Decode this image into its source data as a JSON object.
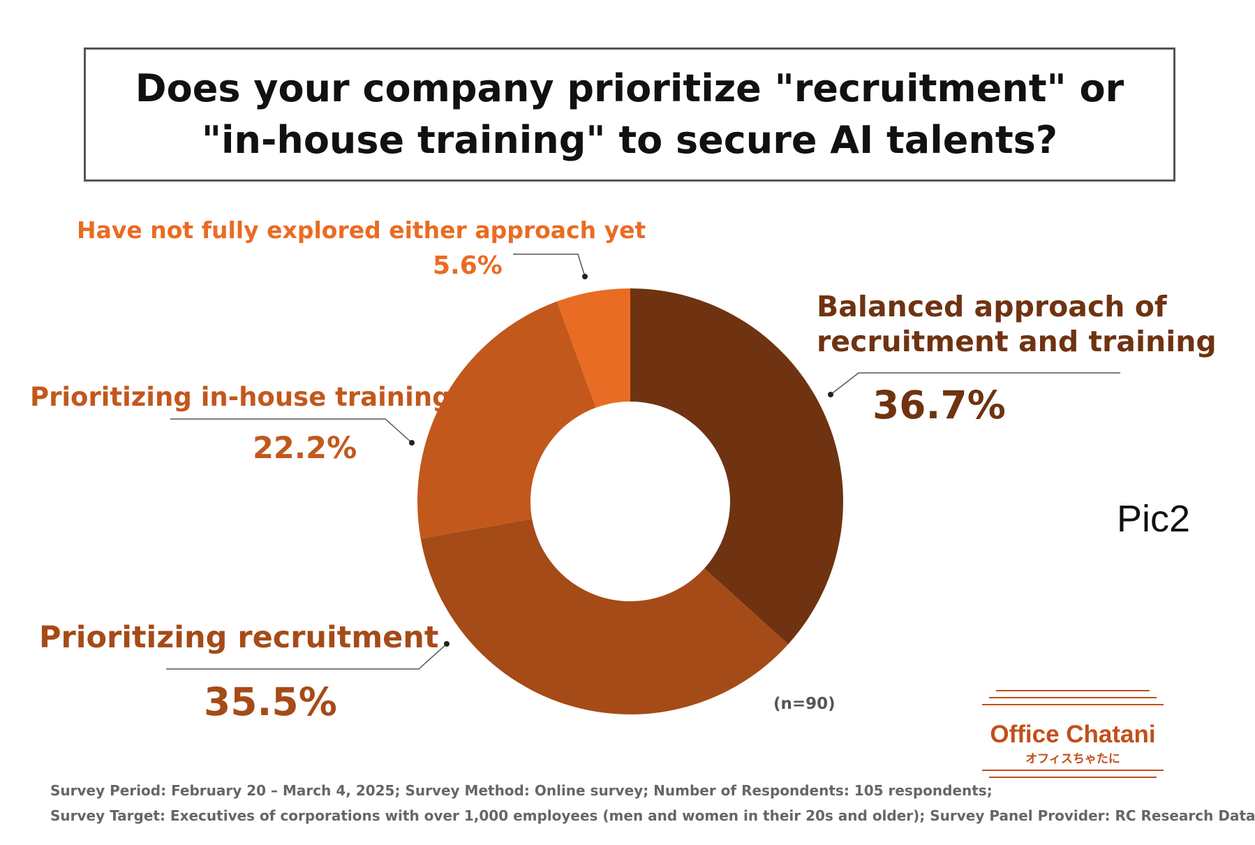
{
  "title": {
    "line1": "Does your company prioritize \"recruitment\" or",
    "line2": "\"in-house training\" to secure AI talents?"
  },
  "chart_data": {
    "type": "pie",
    "variant": "donut",
    "title": "Does your company prioritize \"recruitment\" or \"in-house training\" to secure AI talents?",
    "unit": "%",
    "slices": [
      {
        "label_lines": [
          "Balanced approach of",
          "recruitment and training"
        ],
        "value": 36.7,
        "value_label": "36.7%",
        "color": "#6f3311"
      },
      {
        "label_lines": [
          "Prioritizing recruitment"
        ],
        "value": 35.5,
        "value_label": "35.5%",
        "color": "#a54b18"
      },
      {
        "label_lines": [
          "Prioritizing in-house training"
        ],
        "value": 22.2,
        "value_label": "22.2%",
        "color": "#c2581c"
      },
      {
        "label_lines": [
          "Have not fully explored either approach yet"
        ],
        "value": 5.6,
        "value_label": "5.6%",
        "color": "#e96c24"
      }
    ],
    "start_angle": "12 o'clock",
    "direction": "clockwise",
    "sample_size": "(n=90)"
  },
  "pic_label": "Pic2",
  "footnotes": [
    "Survey Period: February 20 – March 4, 2025; Survey Method: Online survey; Number of Respondents: 105 respondents;",
    "Survey Target: Executives of corporations with over 1,000 employees (men and women in their 20s and older); Survey Panel Provider: RC Research Data"
  ],
  "logo": {
    "name": "Office Chatani",
    "sub": "オフィスちゃたに",
    "color": "#c0501a"
  }
}
